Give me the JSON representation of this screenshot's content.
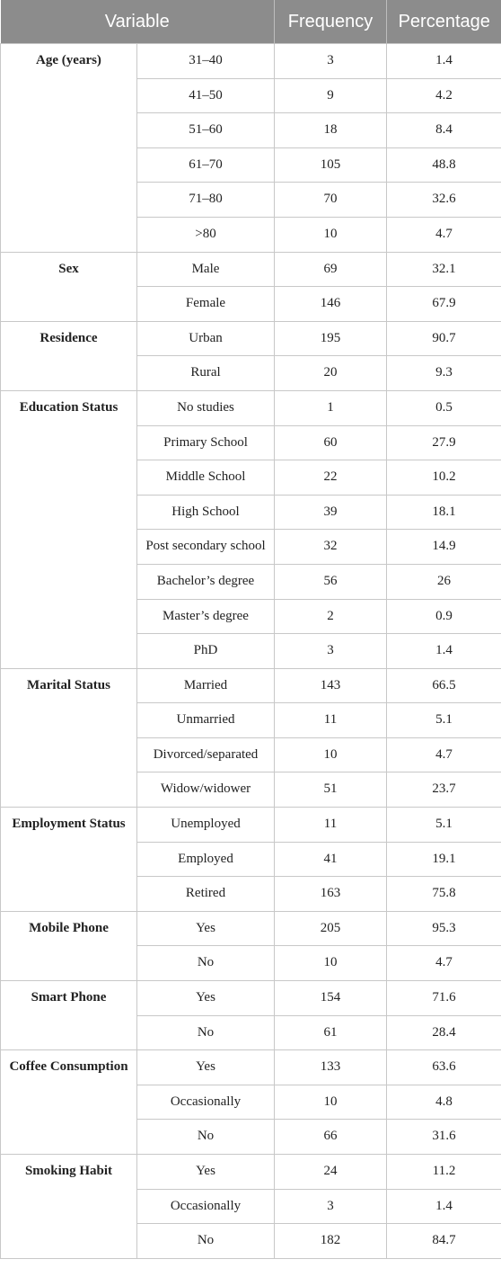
{
  "table": {
    "header": [
      "Variable",
      "Frequency",
      "Percentage"
    ],
    "groups": [
      {
        "label": "Age (years)",
        "rows": [
          [
            "31–40",
            3,
            1.4
          ],
          [
            "41–50",
            9,
            4.2
          ],
          [
            "51–60",
            18,
            8.4
          ],
          [
            "61–70",
            105,
            48.8
          ],
          [
            "71–80",
            70,
            32.6
          ],
          [
            ">80",
            10,
            4.7
          ]
        ]
      },
      {
        "label": "Sex",
        "rows": [
          [
            "Male",
            69,
            32.1
          ],
          [
            "Female",
            146,
            67.9
          ]
        ]
      },
      {
        "label": "Residence",
        "rows": [
          [
            "Urban",
            195,
            90.7
          ],
          [
            "Rural",
            20,
            9.3
          ]
        ]
      },
      {
        "label": "Education Status",
        "rows": [
          [
            "No studies",
            1,
            0.5
          ],
          [
            "Primary School",
            60,
            27.9
          ],
          [
            "Middle School",
            22,
            10.2
          ],
          [
            "High School",
            39,
            18.1
          ],
          [
            "Post secondary school",
            32,
            14.9
          ],
          [
            "Bachelor’s degree",
            56,
            26
          ],
          [
            "Master’s degree",
            2,
            0.9
          ],
          [
            "PhD",
            3,
            1.4
          ]
        ]
      },
      {
        "label": "Marital Status",
        "rows": [
          [
            "Married",
            143,
            66.5
          ],
          [
            "Unmarried",
            11,
            5.1
          ],
          [
            "Divorced/separated",
            10,
            4.7
          ],
          [
            "Widow/widower",
            51,
            23.7
          ]
        ]
      },
      {
        "label": "Employment Status",
        "rows": [
          [
            "Unemployed",
            11,
            5.1
          ],
          [
            "Employed",
            41,
            19.1
          ],
          [
            "Retired",
            163,
            75.8
          ]
        ]
      },
      {
        "label": "Mobile Phone",
        "rows": [
          [
            "Yes",
            205,
            95.3
          ],
          [
            "No",
            10,
            4.7
          ]
        ]
      },
      {
        "label": "Smart Phone",
        "rows": [
          [
            "Yes",
            154,
            71.6
          ],
          [
            "No",
            61,
            28.4
          ]
        ]
      },
      {
        "label": "Coffee Consumption",
        "rows": [
          [
            "Yes",
            133,
            63.6
          ],
          [
            "Occasionally",
            10,
            4.8
          ],
          [
            "No",
            66,
            31.6
          ]
        ]
      },
      {
        "label": "Smoking Habit",
        "rows": [
          [
            "Yes",
            24,
            11.2
          ],
          [
            "Occasionally",
            3,
            1.4
          ],
          [
            "No",
            182,
            84.7
          ]
        ]
      }
    ]
  }
}
